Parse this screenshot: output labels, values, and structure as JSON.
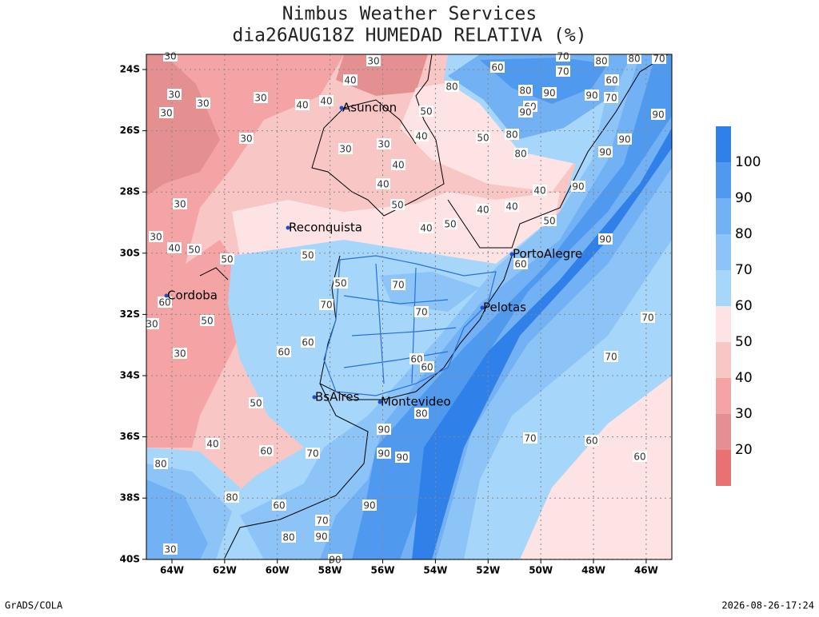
{
  "header": {
    "title": "Nimbus Weather Services",
    "subtitle": "dia26AUG18Z HUMEDAD RELATIVA (%)"
  },
  "map": {
    "lat_labels": [
      "24S",
      "26S",
      "28S",
      "30S",
      "32S",
      "34S",
      "36S",
      "38S",
      "40S"
    ],
    "lon_labels": [
      "64W",
      "62W",
      "60W",
      "58W",
      "56W",
      "54W",
      "52W",
      "50W",
      "48W",
      "46W"
    ],
    "cities": [
      "Asuncion",
      "Reconquista",
      "Cordoba",
      "PortoAlegre",
      "Pelotas",
      "BsAires",
      "Montevideo"
    ],
    "contour_labels": [
      "30",
      "30",
      "30",
      "30",
      "30",
      "30",
      "30",
      "30",
      "30",
      "30",
      "30",
      "30",
      "30",
      "30",
      "40",
      "40",
      "40",
      "40",
      "40",
      "40",
      "40",
      "40",
      "40",
      "40",
      "40",
      "40",
      "50",
      "50",
      "50",
      "50",
      "50",
      "50",
      "50",
      "50",
      "50",
      "50",
      "50",
      "60",
      "60",
      "60",
      "60",
      "60",
      "60",
      "60",
      "60",
      "60",
      "60",
      "60",
      "60",
      "60",
      "70",
      "70",
      "70",
      "70",
      "70",
      "70",
      "70",
      "70",
      "70",
      "70",
      "70",
      "70",
      "80",
      "80",
      "80",
      "80",
      "80",
      "80",
      "80",
      "80",
      "80",
      "80",
      "90",
      "90",
      "90",
      "90",
      "90",
      "90",
      "90",
      "90",
      "90",
      "90",
      "90",
      "90",
      "90",
      "90"
    ]
  },
  "colorbar": {
    "labels": [
      "20",
      "30",
      "40",
      "50",
      "60",
      "70",
      "80",
      "90",
      "100"
    ]
  },
  "footer": {
    "left": "GrADS/COLA",
    "right": "2026-08-26-17:24"
  }
}
